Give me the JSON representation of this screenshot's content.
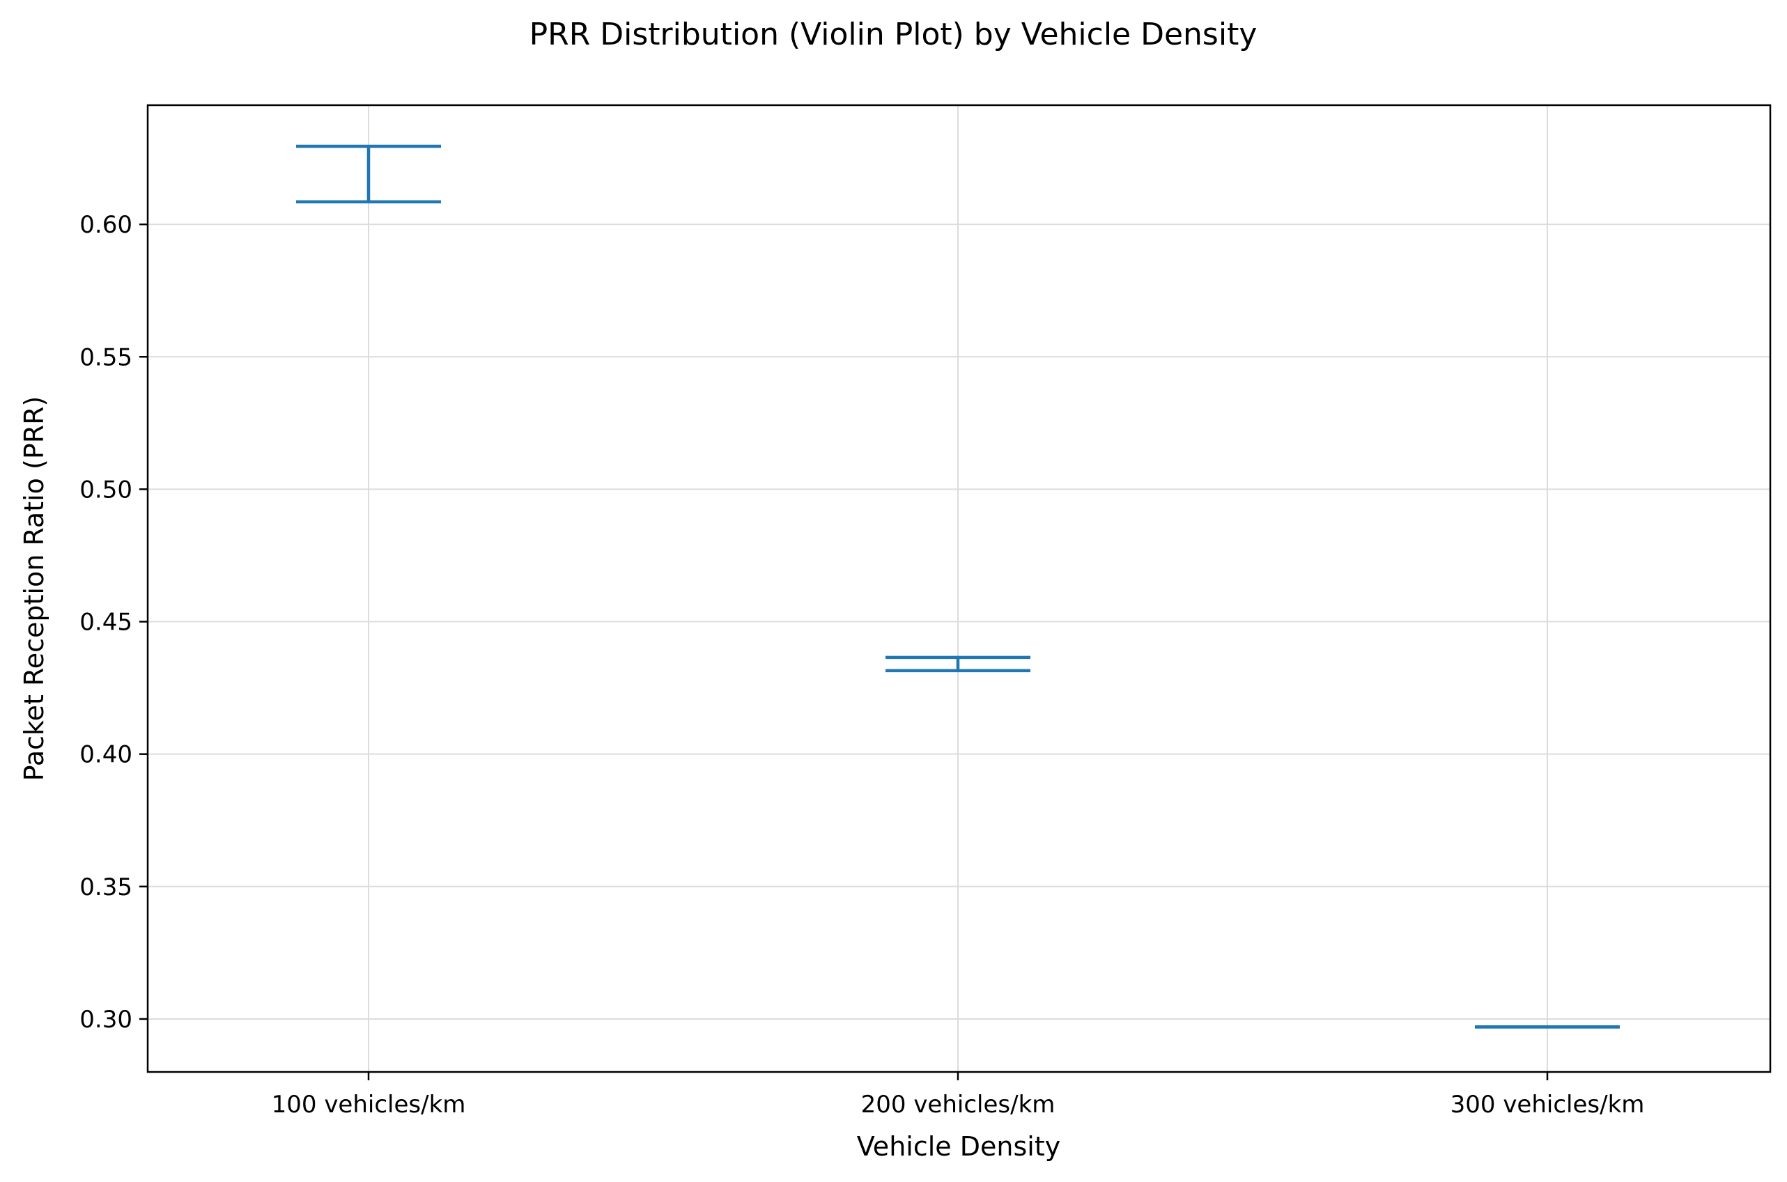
{
  "chart_data": {
    "type": "violin",
    "title": "PRR Distribution (Violin Plot) by Vehicle Density",
    "xlabel": "Vehicle Density",
    "ylabel": "Packet Reception Ratio (PRR)",
    "categories": [
      "100 vehicles/km",
      "200 vehicles/km",
      "300 vehicles/km"
    ],
    "series": [
      {
        "category": "100 vehicles/km",
        "min": 0.6085,
        "max": 0.6295
      },
      {
        "category": "200 vehicles/km",
        "min": 0.4315,
        "max": 0.4365
      },
      {
        "category": "300 vehicles/km",
        "min": 0.297,
        "max": 0.297
      }
    ],
    "ylim": [
      0.28,
      0.645
    ],
    "yticks": [
      "0.30",
      "0.35",
      "0.40",
      "0.45",
      "0.50",
      "0.55",
      "0.60"
    ],
    "grid": true,
    "color": "#1f77b4"
  }
}
